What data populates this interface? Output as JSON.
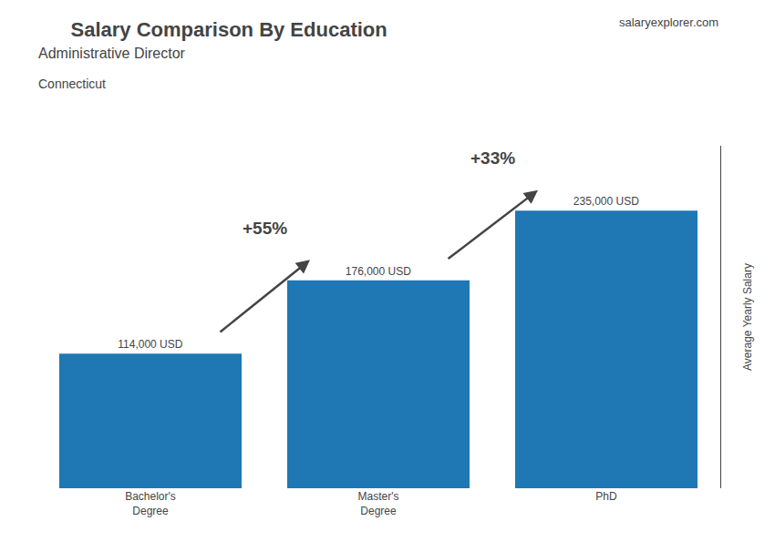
{
  "chart_data": {
    "type": "bar",
    "title": "Salary Comparison By Education",
    "subtitle": [
      "Administrative Director",
      "Connecticut"
    ],
    "annotations": [
      "salaryexplorer.com"
    ],
    "ylabel": "Average Yearly Salary",
    "categories": [
      "Bachelor's\nDegree",
      "Master's\nDegree",
      "PhD"
    ],
    "values": [
      114000,
      176000,
      235000
    ],
    "value_labels": [
      "114,000 USD",
      "176,000 USD",
      "235,000 USD"
    ],
    "data_labels": true,
    "changes": [
      55,
      33
    ],
    "change_labels": [
      "+55%",
      "+33%"
    ],
    "ylim": [
      0,
      290000
    ],
    "yticks": [],
    "tick_labels": "x",
    "grid": false
  }
}
